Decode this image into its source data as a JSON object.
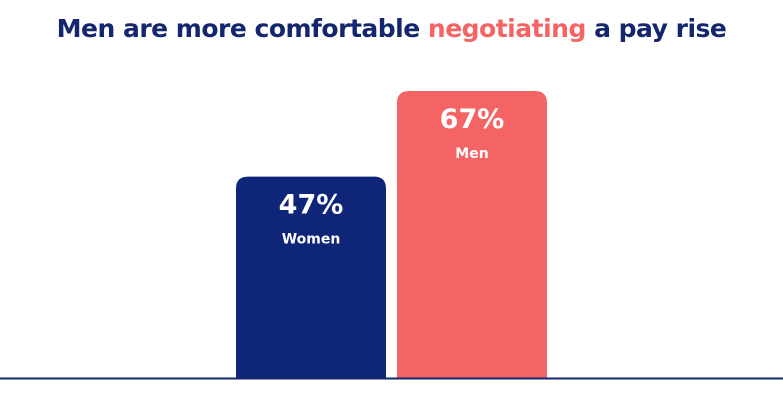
{
  "chart_data": {
    "type": "bar",
    "title": [
      "Men are more comfortable",
      "negotiating",
      "a pay rise"
    ],
    "title_color": "#13266e",
    "title_highlight_color": "#f46464",
    "categories": [
      "Women",
      "Men"
    ],
    "values": [
      47,
      67
    ],
    "value_labels": [
      "47%",
      "67%"
    ],
    "colors": [
      "#0f2577",
      "#f46464"
    ]
  }
}
